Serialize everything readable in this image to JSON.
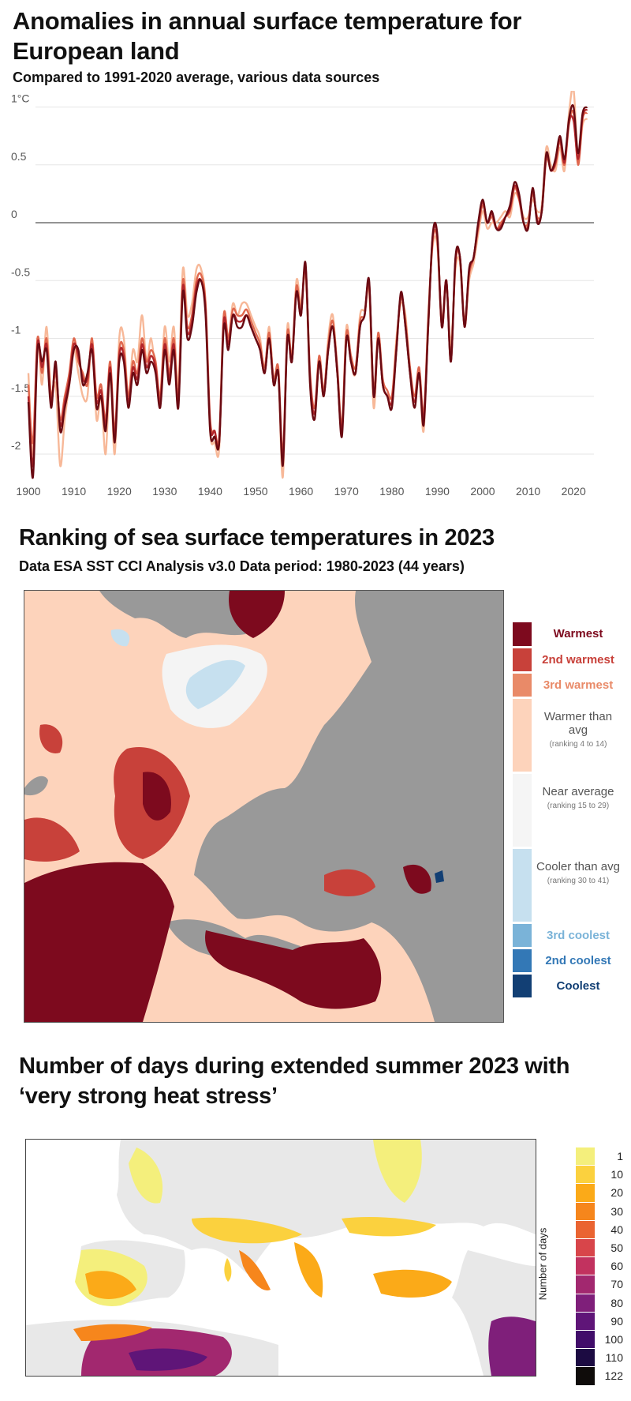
{
  "chart_data": [
    {
      "type": "line",
      "title": "Anomalies in annual surface temperature for European land",
      "subtitle": "Compared to 1991-2020 average, various data sources",
      "xlabel": "",
      "ylabel": "",
      "xlim": [
        1900,
        2023
      ],
      "ylim": [
        -2.2,
        1.15
      ],
      "yticks": [
        {
          "v": 1,
          "label": "1°C"
        },
        {
          "v": 0.5,
          "label": "0.5"
        },
        {
          "v": 0,
          "label": "0"
        },
        {
          "v": -0.5,
          "label": "-0.5"
        },
        {
          "v": -1,
          "label": "-1"
        },
        {
          "v": -1.5,
          "label": "-1.5"
        },
        {
          "v": -2,
          "label": "-2"
        }
      ],
      "xticks": [
        1900,
        1910,
        1920,
        1930,
        1940,
        1950,
        1960,
        1970,
        1980,
        1990,
        2000,
        2010,
        2020
      ],
      "grid": true,
      "x_start": 1900,
      "series": [
        {
          "color": "#f7b898",
          "values": [
            -1.3,
            -2.0,
            -1.0,
            -1.4,
            -0.9,
            -1.5,
            -1.4,
            -2.1,
            -1.7,
            -1.4,
            -1.1,
            -1.3,
            -1.5,
            -1.5,
            -1.0,
            -1.7,
            -1.5,
            -2.0,
            -1.3,
            -2.0,
            -1.0,
            -1.0,
            -1.5,
            -1.1,
            -1.2,
            -0.8,
            -1.2,
            -1.0,
            -1.3,
            -1.5,
            -0.9,
            -1.2,
            -0.9,
            -1.4,
            -0.4,
            -0.8,
            -0.7,
            -0.4,
            -0.4,
            -0.7,
            -1.8,
            -1.9,
            -1.95,
            -0.8,
            -1.0,
            -0.7,
            -0.8,
            -0.7,
            -0.7,
            -0.8,
            -0.9,
            -1.0,
            -1.3,
            -0.9,
            -1.4,
            -1.3,
            -2.2,
            -0.9,
            -1.2,
            -0.5,
            -0.7,
            -0.45,
            -1.4,
            -1.7,
            -1.2,
            -1.5,
            -1.0,
            -0.8,
            -1.3,
            -1.8,
            -0.9,
            -1.2,
            -1.3,
            -0.8,
            -0.75,
            -0.6,
            -1.6,
            -1.0,
            -1.4,
            -1.5,
            -1.55,
            -1.0,
            -0.7,
            -0.8,
            -1.3,
            -1.6,
            -1.3,
            -1.8,
            -0.8,
            -0.2,
            -0.2,
            -0.9,
            -0.55,
            -1.05,
            -0.4,
            -0.35,
            -0.9,
            -0.5,
            -0.35,
            -0.1,
            0.1,
            -0.05,
            0.0,
            0.0,
            0.05,
            0.1,
            0.05,
            0.25,
            0.2,
            0.05,
            0.05,
            0.2,
            0.1,
            0.15,
            0.65,
            0.5,
            0.45,
            0.65,
            0.45,
            0.95,
            1.15,
            0.55,
            0.85,
            0.9
          ]
        },
        {
          "color": "#e0684e",
          "values": [
            -1.4,
            -1.9,
            -1.0,
            -1.3,
            -1.0,
            -1.5,
            -1.3,
            -1.7,
            -1.5,
            -1.3,
            -1.0,
            -1.2,
            -1.3,
            -1.4,
            -1.0,
            -1.5,
            -1.4,
            -1.7,
            -1.2,
            -1.8,
            -1.1,
            -1.1,
            -1.5,
            -1.2,
            -1.3,
            -1.0,
            -1.2,
            -1.1,
            -1.2,
            -1.5,
            -1.0,
            -1.3,
            -1.0,
            -1.5,
            -0.5,
            -0.9,
            -0.8,
            -0.5,
            -0.45,
            -0.7,
            -1.7,
            -1.8,
            -1.85,
            -0.8,
            -1.0,
            -0.75,
            -0.8,
            -0.8,
            -0.75,
            -0.85,
            -0.95,
            -1.05,
            -1.25,
            -0.95,
            -1.35,
            -1.25,
            -2.0,
            -0.95,
            -1.15,
            -0.55,
            -0.75,
            -0.4,
            -1.3,
            -1.6,
            -1.15,
            -1.45,
            -1.05,
            -0.85,
            -1.25,
            -1.75,
            -0.95,
            -1.15,
            -1.25,
            -0.85,
            -0.8,
            -0.55,
            -1.45,
            -0.95,
            -1.35,
            -1.45,
            -1.5,
            -1.05,
            -0.65,
            -0.85,
            -1.25,
            -1.5,
            -1.25,
            -1.65,
            -0.85,
            -0.15,
            -0.15,
            -0.85,
            -0.5,
            -1.15,
            -0.35,
            -0.3,
            -0.85,
            -0.45,
            -0.3,
            -0.05,
            0.15,
            0.0,
            0.05,
            -0.05,
            0.0,
            0.05,
            0.1,
            0.3,
            0.2,
            0.0,
            0.0,
            0.25,
            0.05,
            0.1,
            0.55,
            0.45,
            0.5,
            0.7,
            0.5,
            0.85,
            0.95,
            0.5,
            0.9,
            0.95
          ]
        },
        {
          "color": "#b3262b",
          "values": [
            -1.5,
            -2.1,
            -1.05,
            -1.25,
            -1.05,
            -1.55,
            -1.25,
            -1.75,
            -1.55,
            -1.35,
            -1.05,
            -1.15,
            -1.35,
            -1.35,
            -1.05,
            -1.55,
            -1.45,
            -1.75,
            -1.25,
            -1.85,
            -1.15,
            -1.15,
            -1.55,
            -1.25,
            -1.35,
            -1.05,
            -1.25,
            -1.15,
            -1.25,
            -1.55,
            -1.05,
            -1.35,
            -1.05,
            -1.55,
            -0.55,
            -0.95,
            -0.85,
            -0.55,
            -0.5,
            -0.75,
            -1.75,
            -1.8,
            -1.9,
            -0.85,
            -1.05,
            -0.8,
            -0.85,
            -0.85,
            -0.8,
            -0.9,
            -1.0,
            -1.1,
            -1.3,
            -1.0,
            -1.4,
            -1.3,
            -2.05,
            -1.0,
            -1.2,
            -0.6,
            -0.8,
            -0.38,
            -1.35,
            -1.65,
            -1.2,
            -1.5,
            -1.1,
            -0.9,
            -1.3,
            -1.8,
            -1.0,
            -1.2,
            -1.3,
            -0.9,
            -0.8,
            -0.52,
            -1.5,
            -1.0,
            -1.4,
            -1.5,
            -1.55,
            -1.1,
            -0.62,
            -0.9,
            -1.3,
            -1.55,
            -1.3,
            -1.7,
            -0.9,
            -0.12,
            -0.12,
            -0.9,
            -0.5,
            -1.2,
            -0.32,
            -0.3,
            -0.9,
            -0.42,
            -0.3,
            -0.02,
            0.18,
            0.0,
            0.08,
            -0.05,
            -0.03,
            0.05,
            0.12,
            0.32,
            0.22,
            0.0,
            -0.03,
            0.28,
            0.02,
            0.1,
            0.58,
            0.45,
            0.52,
            0.72,
            0.52,
            0.88,
            0.88,
            0.55,
            0.92,
            0.98
          ]
        },
        {
          "color": "#6a0a12",
          "values": [
            -1.55,
            -2.2,
            -1.1,
            -1.2,
            -1.1,
            -1.6,
            -1.2,
            -1.8,
            -1.6,
            -1.4,
            -1.1,
            -1.1,
            -1.4,
            -1.3,
            -1.1,
            -1.6,
            -1.5,
            -1.8,
            -1.3,
            -1.9,
            -1.2,
            -1.2,
            -1.6,
            -1.3,
            -1.4,
            -1.1,
            -1.3,
            -1.2,
            -1.3,
            -1.6,
            -1.1,
            -1.4,
            -1.1,
            -1.6,
            -0.6,
            -1.0,
            -0.9,
            -0.6,
            -0.5,
            -0.8,
            -1.8,
            -1.85,
            -1.9,
            -0.9,
            -1.1,
            -0.8,
            -0.9,
            -0.9,
            -0.8,
            -0.9,
            -1.0,
            -1.1,
            -1.3,
            -1.0,
            -1.4,
            -1.3,
            -2.1,
            -1.0,
            -1.2,
            -0.6,
            -0.8,
            -0.35,
            -1.4,
            -1.7,
            -1.2,
            -1.5,
            -1.1,
            -0.9,
            -1.3,
            -1.85,
            -1.0,
            -1.2,
            -1.3,
            -0.9,
            -0.8,
            -0.5,
            -1.5,
            -1.0,
            -1.4,
            -1.5,
            -1.6,
            -1.1,
            -0.6,
            -0.9,
            -1.3,
            -1.6,
            -1.3,
            -1.75,
            -0.9,
            -0.1,
            -0.1,
            -0.9,
            -0.5,
            -1.2,
            -0.3,
            -0.3,
            -0.9,
            -0.4,
            -0.3,
            0.0,
            0.2,
            0.0,
            0.1,
            -0.05,
            -0.05,
            0.05,
            0.15,
            0.35,
            0.25,
            0.0,
            -0.05,
            0.3,
            0.0,
            0.1,
            0.6,
            0.45,
            0.55,
            0.75,
            0.55,
            0.9,
            1.0,
            0.6,
            0.95,
            1.0
          ]
        }
      ]
    }
  ],
  "sst_map": {
    "title": "Ranking of sea surface temperatures in 2023",
    "subtitle": "Data ESA SST CCI Analysis v3.0 Data period: 1980-2023 (44 years)",
    "legend": [
      {
        "label": "Warmest",
        "color": "#7d0a1e",
        "text_color": "#7d0a1e"
      },
      {
        "label": "2nd warmest",
        "color": "#c8413a",
        "text_color": "#c8413a"
      },
      {
        "label": "3rd warmest",
        "color": "#e98a68",
        "text_color": "#e98a68"
      },
      {
        "label": "Warmer than avg",
        "note": "(ranking 4 to 14)",
        "color": "#fdd3bb",
        "text_color": "#555555"
      },
      {
        "label": "Near average",
        "note": "(ranking 15 to 29)",
        "color": "#f5f5f5",
        "text_color": "#555555"
      },
      {
        "label": "Cooler than avg",
        "note": "(ranking 30 to 41)",
        "color": "#c6e0ef",
        "text_color": "#555555"
      },
      {
        "label": "3rd coolest",
        "color": "#7ab3d8",
        "text_color": "#7ab3d8"
      },
      {
        "label": "2nd coolest",
        "color": "#3378b6",
        "text_color": "#3378b6"
      },
      {
        "label": "Coolest",
        "color": "#123f74",
        "text_color": "#123f74"
      }
    ],
    "land_color": "#999999"
  },
  "heat_map": {
    "title": "Number of days during extended summer 2023 with ‘very strong heat stress’",
    "colorbar_label": "Number of days",
    "colorbar": [
      {
        "label": "1",
        "color": "#f4ef7c"
      },
      {
        "label": "10",
        "color": "#fbd13e"
      },
      {
        "label": "20",
        "color": "#fbaa18"
      },
      {
        "label": "30",
        "color": "#f6861c"
      },
      {
        "label": "40",
        "color": "#ea6431"
      },
      {
        "label": "50",
        "color": "#d8454a"
      },
      {
        "label": "60",
        "color": "#c2325f"
      },
      {
        "label": "70",
        "color": "#a2286f"
      },
      {
        "label": "80",
        "color": "#7f1f7a"
      },
      {
        "label": "90",
        "color": "#5f1578"
      },
      {
        "label": "100",
        "color": "#410d6a"
      },
      {
        "label": "110",
        "color": "#1c0b42"
      },
      {
        "label": "122",
        "color": "#0f0c0a"
      }
    ],
    "land_color": "#e8e8e8"
  }
}
